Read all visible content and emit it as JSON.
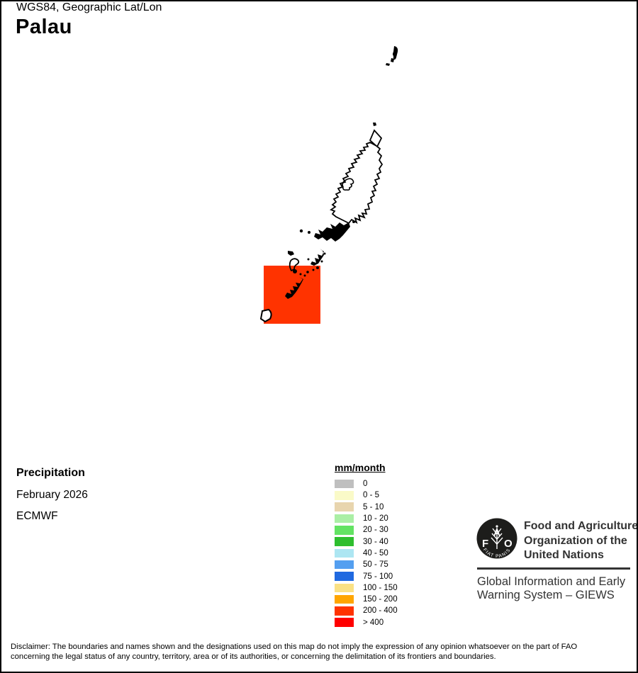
{
  "page": {
    "title": "Palau",
    "background": "#FFFFFF",
    "border_color": "#000000"
  },
  "info": {
    "product": "Precipitation",
    "period": "February 2026",
    "source": "ECMWF",
    "projection": "WGS84, Geographic Lat/Lon"
  },
  "legend": {
    "title": "mm/month",
    "items": [
      {
        "label": "0",
        "color": "#BFBFBF"
      },
      {
        "label": "0 - 5",
        "color": "#FAFAC8"
      },
      {
        "label": "5 - 10",
        "color": "#E8D5AE"
      },
      {
        "label": "10 - 20",
        "color": "#AAEFA5"
      },
      {
        "label": "20 - 30",
        "color": "#63E363"
      },
      {
        "label": "30 - 40",
        "color": "#2EBE2E"
      },
      {
        "label": "40 - 50",
        "color": "#ADE6F2"
      },
      {
        "label": "50 - 75",
        "color": "#549FF0"
      },
      {
        "label": "75 - 100",
        "color": "#2069E0"
      },
      {
        "label": "100 - 150",
        "color": "#FAE185"
      },
      {
        "label": "150 - 200",
        "color": "#FFA500"
      },
      {
        "label": "200 - 400",
        "color": "#FF3300"
      },
      {
        "label": "> 400",
        "color": "#FF0000"
      }
    ]
  },
  "map": {
    "overlay_color": "#FF3300"
  },
  "fao": {
    "org_lines": [
      "Food and Agriculture",
      "Organization of the",
      "United Nations"
    ],
    "giews_lines": [
      "Global Information and Early",
      "Warning System – GIEWS"
    ],
    "logo": {
      "f": "F",
      "a": "A",
      "o": "O",
      "motto": "FIAT PANIS"
    }
  },
  "disclaimer": {
    "lines": [
      "Disclaimer: The boundaries and names shown and the designations used on this map do not imply the expression of any opinion whatsoever on the part of FAO",
      "concerning the legal status of any country, territory, area or of its authorities, or concerning the delimitation of its frontiers and boundaries."
    ]
  }
}
